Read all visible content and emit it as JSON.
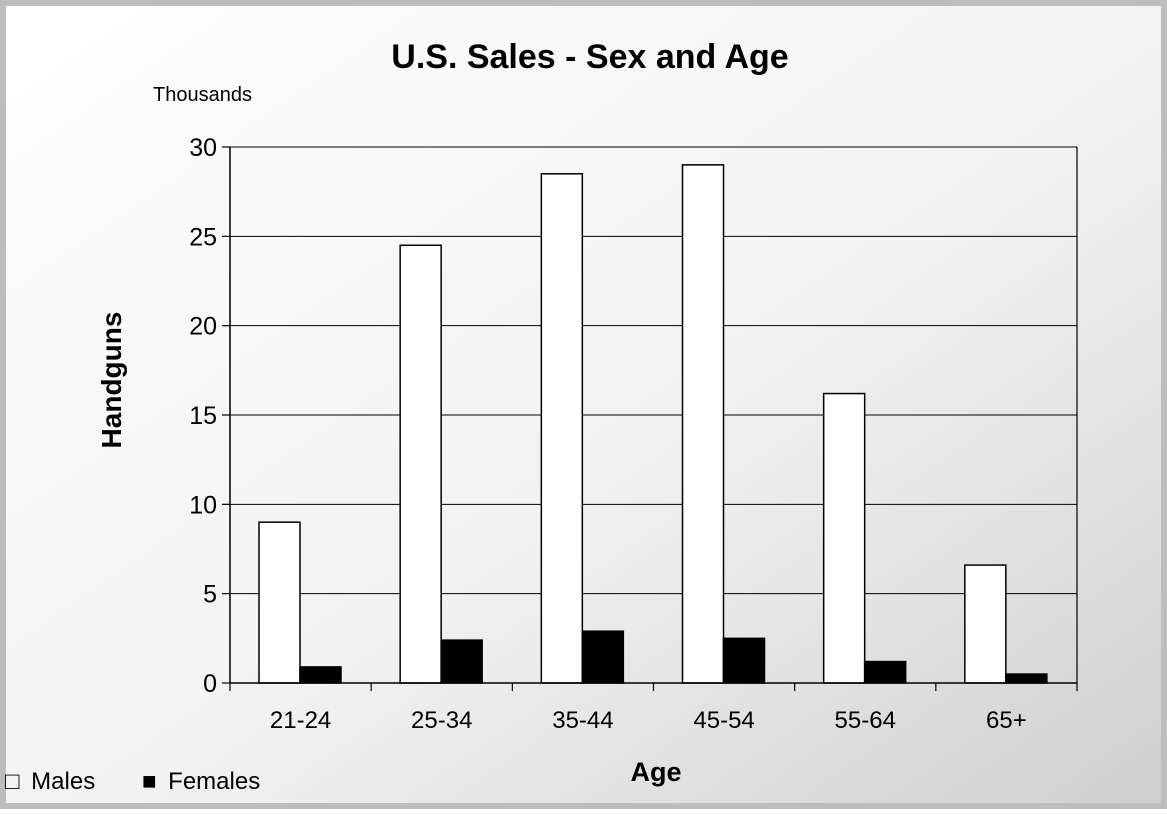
{
  "chart_data": {
    "type": "bar",
    "title": "U.S. Sales - Sex and Age",
    "units_label": "Thousands",
    "xlabel": "Age",
    "ylabel": "Handguns",
    "categories": [
      "21-24",
      "25-34",
      "35-44",
      "45-54",
      "55-64",
      "65+"
    ],
    "series": [
      {
        "name": "Males",
        "values": [
          9.0,
          24.5,
          28.5,
          29.0,
          16.2,
          6.6
        ],
        "color": "#ffffff"
      },
      {
        "name": "Females",
        "values": [
          0.9,
          2.4,
          2.9,
          2.5,
          1.2,
          0.5
        ],
        "color": "#000000"
      }
    ],
    "ylim": [
      0,
      30
    ],
    "yticks": [
      "0",
      "5",
      "10",
      "15",
      "20",
      "25",
      "30"
    ],
    "grid": true,
    "legend_position": "bottom-left",
    "legend": {
      "males_symbol": "□",
      "females_symbol": "■"
    },
    "colors": {
      "background_light": "#ffffff",
      "background_dark": "#cfcfcf",
      "frame_border": "#bdbdbd",
      "axis": "#000000",
      "grid": "#000000"
    }
  }
}
